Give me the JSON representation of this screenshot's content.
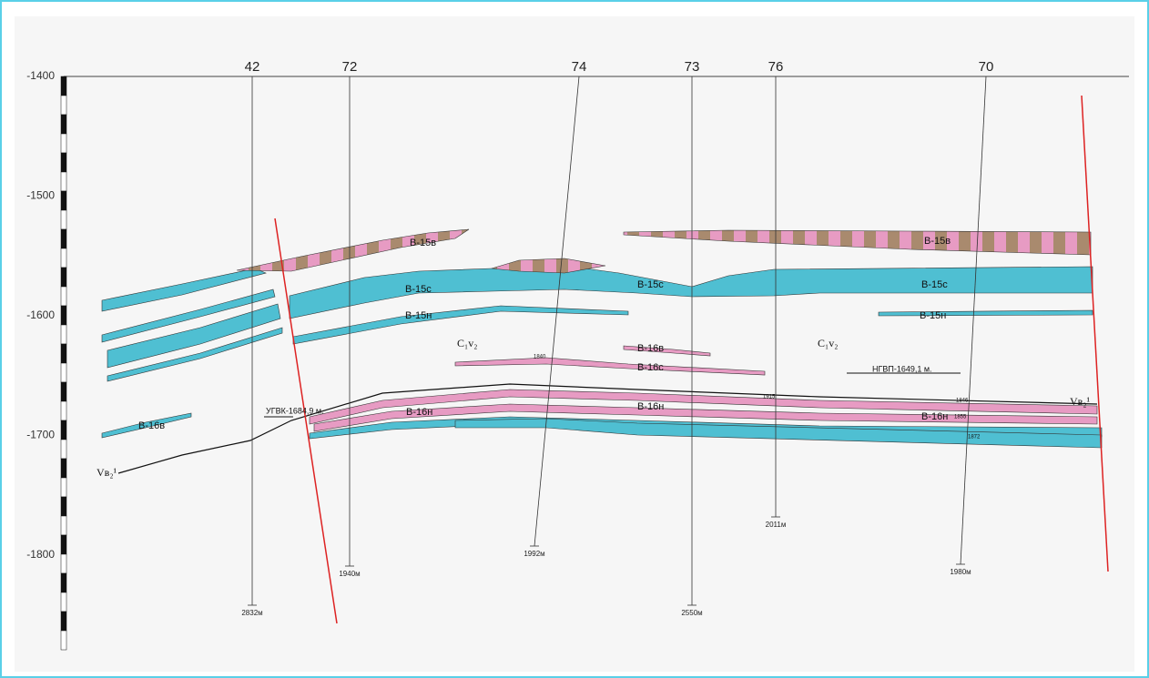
{
  "depth_axis": {
    "ticks": [
      -1400,
      -1500,
      -1600,
      -1700,
      -1800
    ]
  },
  "wells": [
    {
      "name": "42",
      "bottom": "2832м"
    },
    {
      "name": "72",
      "bottom": "1940м"
    },
    {
      "name": "74",
      "bottom": "1992м"
    },
    {
      "name": "73",
      "bottom": "2550м"
    },
    {
      "name": "76",
      "bottom": "2011м"
    },
    {
      "name": "70",
      "bottom": "1980м"
    }
  ],
  "layer_labels": [
    "В-15в",
    "В-15в",
    "В-15с",
    "В-15с",
    "В-15с",
    "В-15н",
    "В-15н",
    "В-16в",
    "В-16в",
    "В-16с",
    "В-16н",
    "В-16н",
    "В-16н"
  ],
  "formation_labels": [
    "C₁v₂",
    "C₁v₂",
    "Vв₂¹",
    "Vв₂¹"
  ],
  "contacts": [
    "УГВК-1684,9 м.",
    "НГВП-1649,1 м."
  ],
  "small_marks": [
    "1840",
    "1846",
    "1855",
    "1872",
    "1915"
  ]
}
